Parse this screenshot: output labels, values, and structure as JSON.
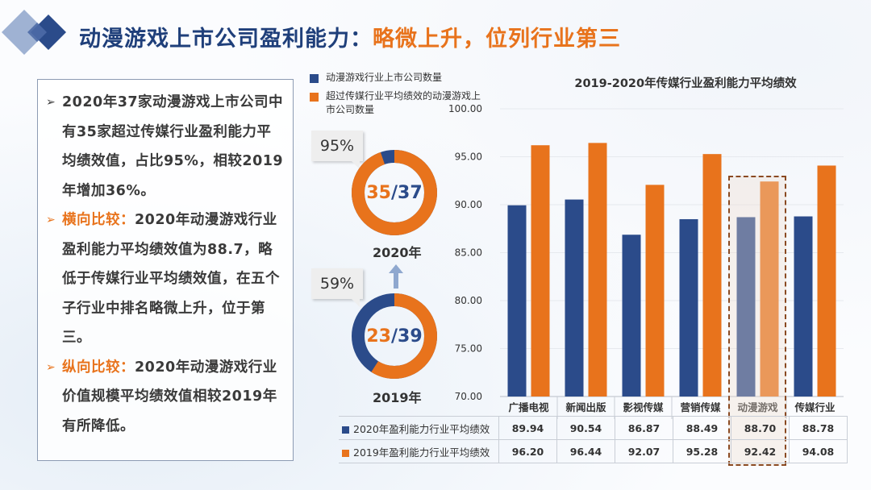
{
  "slide": {
    "title_part1": "动漫游戏上市公司盈利能力：",
    "title_part2": "略微上升，位列行业第三",
    "accent_color": "#e8731c",
    "primary_color": "#1f3f7a"
  },
  "left_panel": {
    "paragraphs": [
      {
        "lead": "",
        "text": "2020年37家动漫游戏上市公司中有35家超过传媒行业盈利能力平均绩效值，占比95%，相较2019年增加36%。"
      },
      {
        "lead": "横向比较：",
        "text": "2020年动漫游戏行业盈利能力平均绩效值为88.7，略低于传媒行业平均绩效值，在五个子行业中排名略微上升，位于第三。"
      },
      {
        "lead": "纵向比较：",
        "text": "2020年动漫游戏行业价值规模平均绩效值相较2019年有所降低。"
      }
    ]
  },
  "legend": {
    "item1": "动漫游戏行业上市公司数量",
    "item2": "超过传媒行业平均绩效的动漫游戏上市公司数量"
  },
  "donuts": [
    {
      "year": "2020年",
      "exceed": "35",
      "slash": "/",
      "total": "37",
      "pct": "95%",
      "fraction": 0.946
    },
    {
      "year": "2019年",
      "exceed": "23",
      "slash": "/",
      "total": "39",
      "pct": "59%",
      "fraction": 0.59
    }
  ],
  "chart_data": {
    "type": "bar",
    "title": "2019-2020年传媒行业盈利能力平均绩效",
    "categories": [
      "广播电视",
      "新闻出版",
      "影视传媒",
      "营销传媒",
      "动漫游戏",
      "传媒行业"
    ],
    "series": [
      {
        "name": "2020年盈利能力行业平均绩效",
        "color": "#2b4b8a",
        "values": [
          89.94,
          90.54,
          86.87,
          88.49,
          88.7,
          88.78
        ]
      },
      {
        "name": "2019年盈利能力行业平均绩效",
        "color": "#e8731c",
        "values": [
          96.2,
          96.44,
          92.07,
          95.28,
          92.42,
          94.08
        ]
      }
    ],
    "ylim": [
      70,
      100
    ],
    "yticks": [
      "70.00",
      "75.00",
      "80.00",
      "85.00",
      "90.00",
      "95.00",
      "100.00"
    ],
    "highlight_category": "动漫游戏",
    "table_values": {
      "2020": [
        "89.94",
        "90.54",
        "86.87",
        "88.49",
        "88.70",
        "88.78"
      ],
      "2019": [
        "96.20",
        "96.44",
        "92.07",
        "95.28",
        "92.42",
        "94.08"
      ]
    }
  }
}
